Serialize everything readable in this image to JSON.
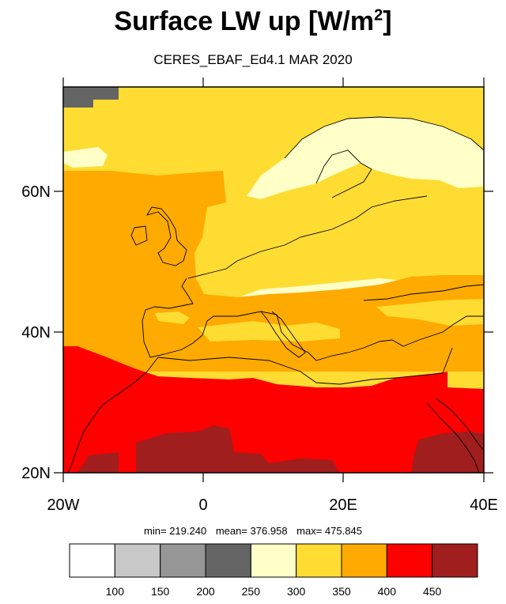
{
  "title": {
    "main": "Surface LW up [W/m",
    "sup": "2",
    "close": "]"
  },
  "subtitle": "CERES_EBAF_Ed4.1 MAR 2020",
  "axes": {
    "lat_labels": [
      "60N",
      "40N",
      "20N"
    ],
    "lon_labels": [
      "20W",
      "0",
      "20E",
      "40E"
    ]
  },
  "stats": {
    "min": "min= 219.240",
    "mean": "mean= 376.958",
    "max": "max= 475.845"
  },
  "colorbar": {
    "colors": [
      "#ffffff",
      "#c8c8c8",
      "#969696",
      "#646464",
      "#ffffc8",
      "#ffdc32",
      "#ffaa00",
      "#ff0000",
      "#a01e1e"
    ],
    "ticks": [
      "100",
      "150",
      "200",
      "250",
      "300",
      "350",
      "400",
      "450"
    ]
  },
  "palette": {
    "land_outline": "#000000",
    "gray_region": "#646464",
    "pale": "#ffffc8",
    "yellow": "#ffdc32",
    "orange": "#ffaa00",
    "red": "#ff0000",
    "darkred": "#a01e1e"
  }
}
